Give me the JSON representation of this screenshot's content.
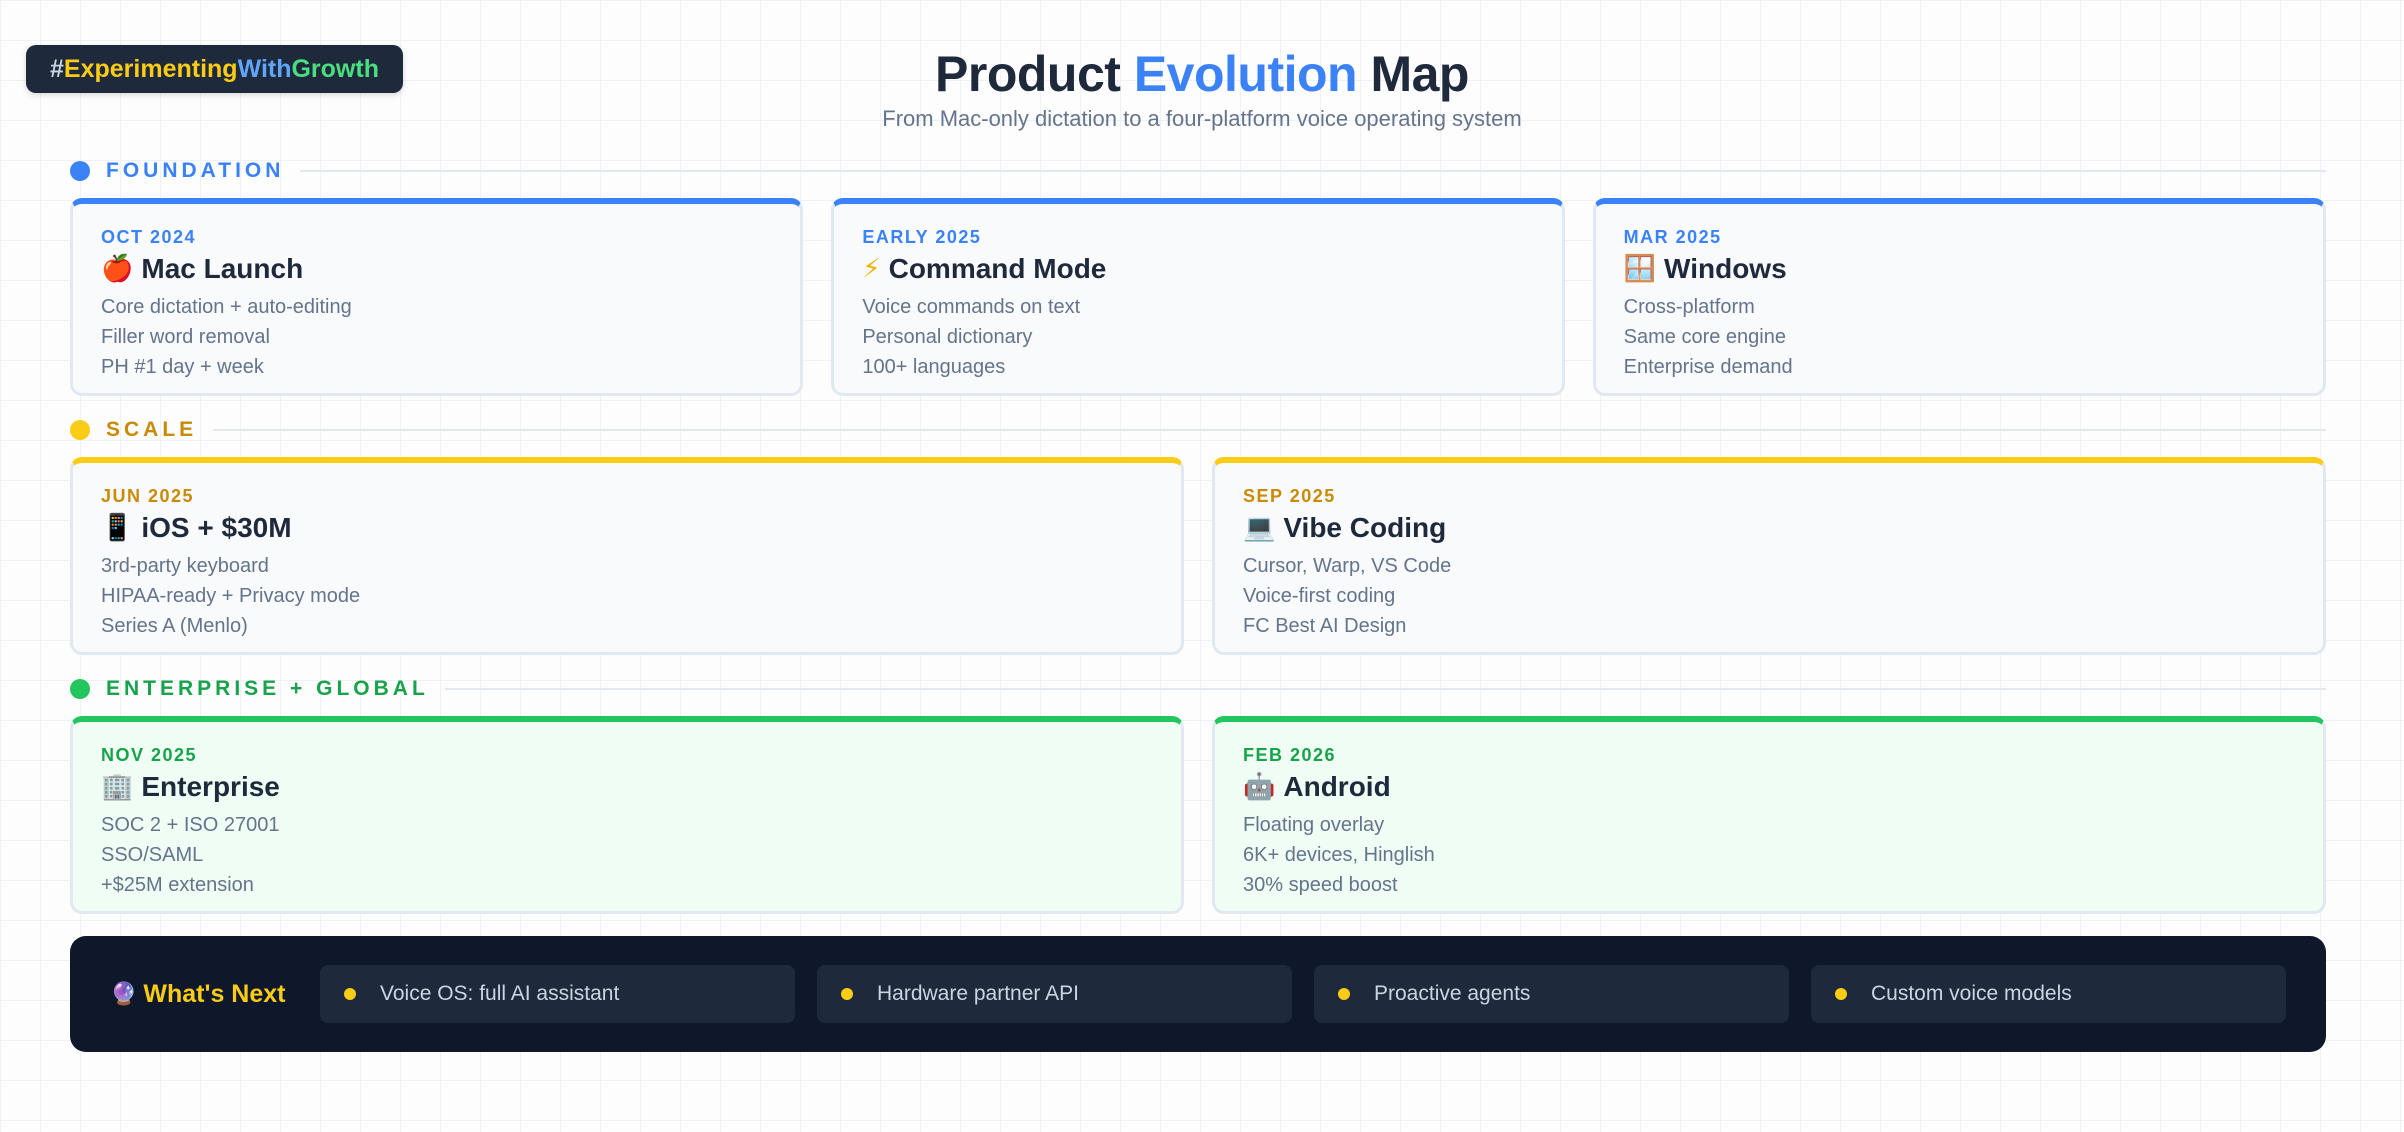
{
  "hashtag": {
    "p1": "#",
    "p2": "Experimenting",
    "p3": "With",
    "p4": "Growth"
  },
  "header": {
    "title_part1": "Product ",
    "title_accent": "Evolution",
    "title_part2": " Map",
    "subtitle": "From Mac-only dictation to a four-platform voice operating system"
  },
  "colors": {
    "blue": "#3b82f6",
    "yellow": "#facc15",
    "green": "#22c55e",
    "dark": "#0f172a"
  },
  "sections": [
    {
      "label": "FOUNDATION",
      "color": "#3b82f6",
      "cards": [
        {
          "date": "OCT 2024",
          "icon": "apple-icon",
          "emoji": "🍎",
          "title": "Mac Launch",
          "items": [
            "Core dictation + auto-editing",
            "Filler word removal",
            "PH #1 day + week"
          ]
        },
        {
          "date": "EARLY 2025",
          "icon": "lightning-icon",
          "emoji": "⚡",
          "title": "Command Mode",
          "items": [
            "Voice commands on text",
            "Personal dictionary",
            "100+ languages"
          ]
        },
        {
          "date": "MAR 2025",
          "icon": "window-icon",
          "emoji": "🪟",
          "title": "Windows",
          "items": [
            "Cross-platform",
            "Same core engine",
            "Enterprise demand"
          ]
        }
      ]
    },
    {
      "label": "SCALE",
      "color": "#facc15",
      "cards": [
        {
          "date": "JUN 2025",
          "icon": "phone-icon",
          "emoji": "📱",
          "title": "iOS + $30M",
          "items": [
            "3rd-party keyboard",
            "HIPAA-ready + Privacy mode",
            "Series A (Menlo)"
          ]
        },
        {
          "date": "SEP 2025",
          "icon": "laptop-icon",
          "emoji": "💻",
          "title": "Vibe Coding",
          "items": [
            "Cursor, Warp, VS Code",
            "Voice-first coding",
            "FC Best AI Design"
          ]
        }
      ]
    },
    {
      "label": "ENTERPRISE + GLOBAL",
      "color": "#22c55e",
      "cards": [
        {
          "date": "NOV 2025",
          "icon": "office-building-icon",
          "emoji": "🏢",
          "title": "Enterprise",
          "items": [
            "SOC 2 + ISO 27001",
            "SSO/SAML",
            "+$25M extension"
          ]
        },
        {
          "date": "FEB 2026",
          "icon": "robot-icon",
          "emoji": "🤖",
          "title": "Android",
          "items": [
            "Floating overlay",
            "6K+ devices, Hinglish",
            "30% speed boost"
          ]
        }
      ]
    }
  ],
  "whats_next": {
    "icon": "crystal-ball-icon",
    "emoji": "🔮",
    "title": "What's Next",
    "items": [
      "Voice OS: full AI assistant",
      "Hardware partner API",
      "Proactive agents",
      "Custom voice models"
    ]
  }
}
